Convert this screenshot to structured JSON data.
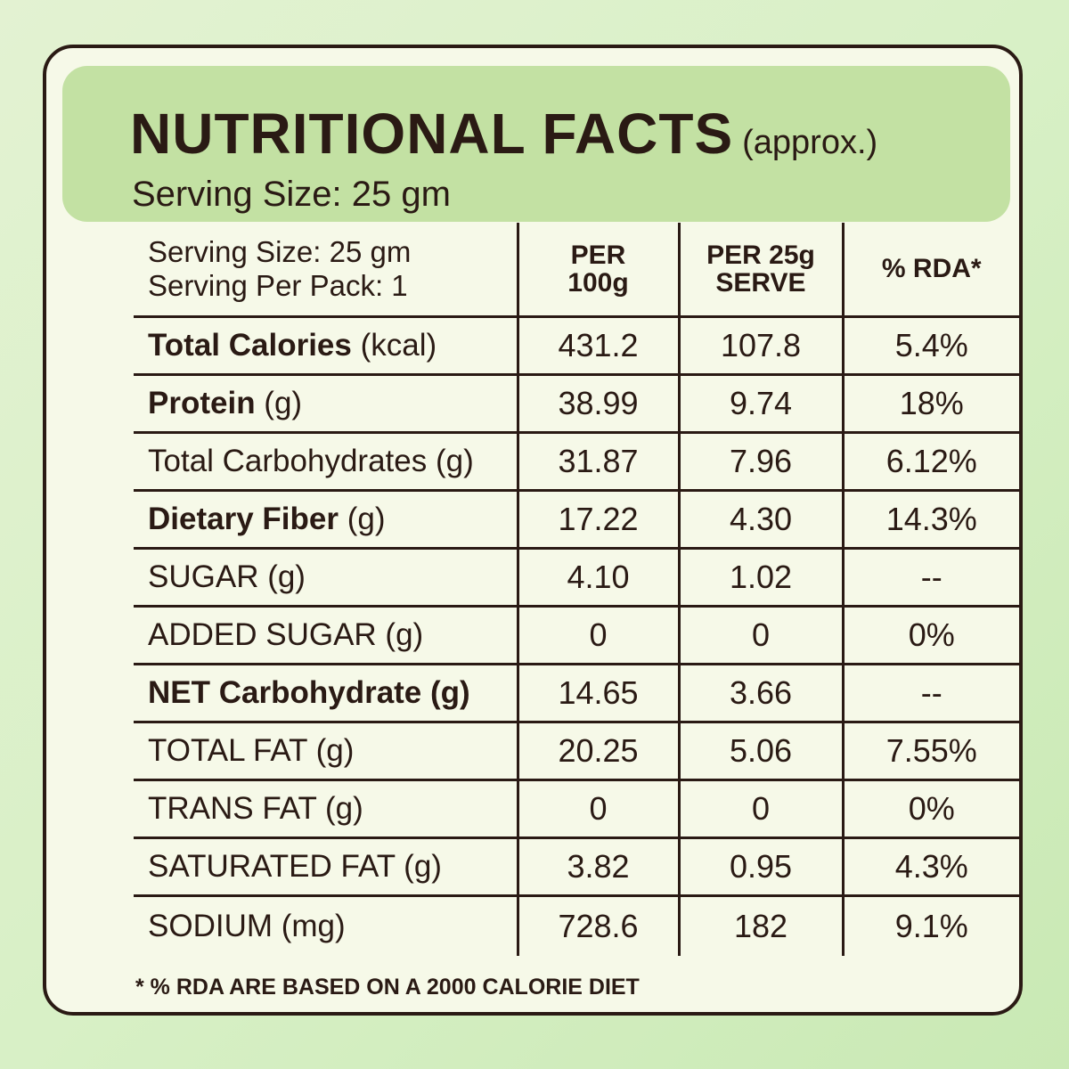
{
  "header": {
    "title": "NUTRITIONAL FACTS",
    "title_note": "(approx.)",
    "serving_size": "Serving Size: 25 gm"
  },
  "table": {
    "corner_line1": "Serving Size: 25 gm",
    "corner_line2": "Serving Per Pack: 1",
    "columns": [
      {
        "line1": "PER",
        "line2": "100g"
      },
      {
        "line1": "PER 25g",
        "line2": "SERVE"
      },
      {
        "line1": "% RDA*",
        "line2": ""
      }
    ],
    "rows": [
      {
        "name": "Total Calories",
        "unit": " (kcal)",
        "bold": true,
        "per100": "431.2",
        "per25": "107.8",
        "rda": "5.4%"
      },
      {
        "name": "Protein",
        "unit": " (g)",
        "bold": true,
        "per100": "38.99",
        "per25": "9.74",
        "rda": "18%"
      },
      {
        "name": "Total Carbohydrates (g)",
        "unit": "",
        "bold": false,
        "per100": "31.87",
        "per25": "7.96",
        "rda": "6.12%"
      },
      {
        "name": "Dietary Fiber",
        "unit": " (g)",
        "bold": true,
        "per100": "17.22",
        "per25": "4.30",
        "rda": "14.3%"
      },
      {
        "name": "SUGAR (g)",
        "unit": "",
        "bold": false,
        "per100": "4.10",
        "per25": "1.02",
        "rda": "--"
      },
      {
        "name": "ADDED SUGAR (g)",
        "unit": "",
        "bold": false,
        "per100": "0",
        "per25": "0",
        "rda": "0%"
      },
      {
        "name": "NET Carbohydrate (g)",
        "unit": "",
        "bold": true,
        "per100": "14.65",
        "per25": "3.66",
        "rda": "--"
      },
      {
        "name": "TOTAL FAT (g)",
        "unit": "",
        "bold": false,
        "per100": "20.25",
        "per25": "5.06",
        "rda": "7.55%"
      },
      {
        "name": "TRANS FAT (g)",
        "unit": "",
        "bold": false,
        "per100": "0",
        "per25": "0",
        "rda": "0%"
      },
      {
        "name": "SATURATED FAT (g)",
        "unit": "",
        "bold": false,
        "per100": "3.82",
        "per25": "0.95",
        "rda": "4.3%"
      },
      {
        "name": "SODIUM (mg)",
        "unit": "",
        "bold": false,
        "per100": "728.6",
        "per25": "182",
        "rda": "9.1%"
      }
    ]
  },
  "footnote": "* % RDA ARE BASED ON A 2000 CALORIE DIET",
  "colors": {
    "text": "#2a1a14",
    "header_bg": "#c3e1a3",
    "card_bg": "#f6f9e8",
    "page_bg": "#d8f0c6"
  }
}
